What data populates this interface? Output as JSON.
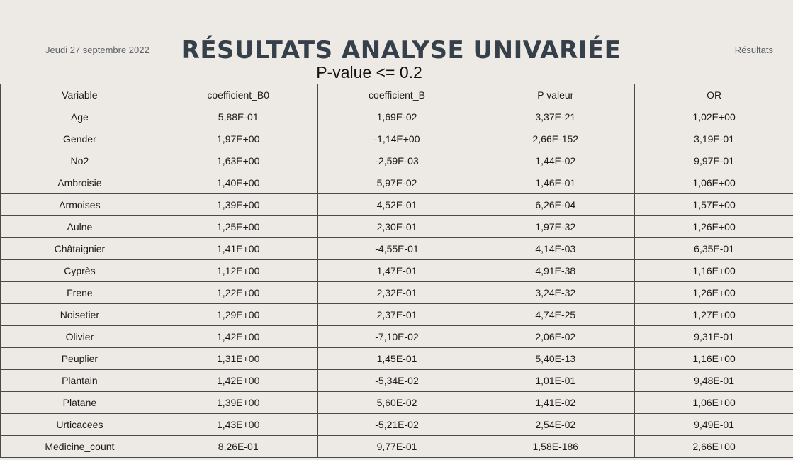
{
  "header": {
    "date": "Jeudi 27 septembre 2022",
    "title": "RÉSULTATS ANALYSE UNIVARIÉE",
    "subtitle": "P-value <= 0.2",
    "section": "Résultats"
  },
  "table": {
    "columns": [
      "Variable",
      "coefficient_B0",
      "coefficient_B",
      "P valeur",
      "OR"
    ],
    "rows": [
      [
        "Age",
        "5,88E-01",
        "1,69E-02",
        "3,37E-21",
        "1,02E+00"
      ],
      [
        "Gender",
        "1,97E+00",
        "-1,14E+00",
        "2,66E-152",
        "3,19E-01"
      ],
      [
        "No2",
        "1,63E+00",
        "-2,59E-03",
        "1,44E-02",
        "9,97E-01"
      ],
      [
        "Ambroisie",
        "1,40E+00",
        "5,97E-02",
        "1,46E-01",
        "1,06E+00"
      ],
      [
        "Armoises",
        "1,39E+00",
        "4,52E-01",
        "6,26E-04",
        "1,57E+00"
      ],
      [
        "Aulne",
        "1,25E+00",
        "2,30E-01",
        "1,97E-32",
        "1,26E+00"
      ],
      [
        "Châtaignier",
        "1,41E+00",
        "-4,55E-01",
        "4,14E-03",
        "6,35E-01"
      ],
      [
        "Cyprès",
        "1,12E+00",
        "1,47E-01",
        "4,91E-38",
        "1,16E+00"
      ],
      [
        "Frene",
        "1,22E+00",
        "2,32E-01",
        "3,24E-32",
        "1,26E+00"
      ],
      [
        "Noisetier",
        "1,29E+00",
        "2,37E-01",
        "4,74E-25",
        "1,27E+00"
      ],
      [
        "Olivier",
        "1,42E+00",
        "-7,10E-02",
        "2,06E-02",
        "9,31E-01"
      ],
      [
        "Peuplier",
        "1,31E+00",
        "1,45E-01",
        "5,40E-13",
        "1,16E+00"
      ],
      [
        "Plantain",
        "1,42E+00",
        "-5,34E-02",
        "1,01E-01",
        "9,48E-01"
      ],
      [
        "Platane",
        "1,39E+00",
        "5,60E-02",
        "1,41E-02",
        "1,06E+00"
      ],
      [
        "Urticacees",
        "1,43E+00",
        "-5,21E-02",
        "2,54E-02",
        "9,49E-01"
      ],
      [
        "Medicine_count",
        "8,26E-01",
        "9,77E-01",
        "1,58E-186",
        "2,66E+00"
      ]
    ]
  },
  "colors": {
    "background": "#ede9e4",
    "title": "#36404a",
    "border": "#4a4a4a"
  }
}
